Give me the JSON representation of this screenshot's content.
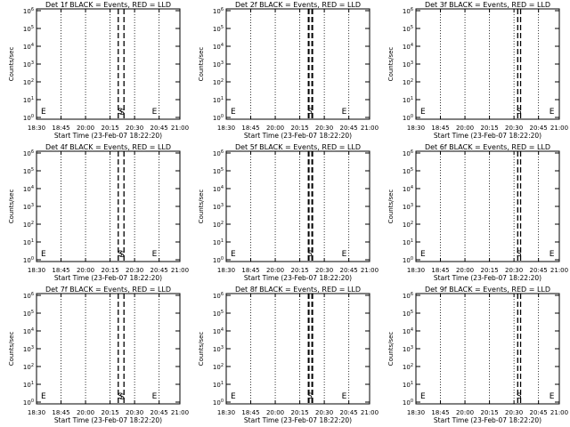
{
  "chart_data": [
    {
      "type": "line",
      "title": "Det 1f BLACK = Events, RED = LLD",
      "xlabel": "Start Time (23-Feb-07 18:22:20)",
      "ylabel": "Counts/sec",
      "xticks": [
        "18:30",
        "18:45",
        "20:00",
        "20:15",
        "20:30",
        "20:45",
        "21:00"
      ],
      "yticks": [
        "10^6",
        "10^5",
        "10^4",
        "10^3",
        "10^2",
        "10^1",
        "10^0"
      ],
      "ylim": [
        1,
        1000000
      ],
      "yscale": "log",
      "annotations": [
        "E",
        "S",
        "S",
        "E"
      ],
      "series": [
        {
          "color": "#000000",
          "style": "dashed",
          "values": []
        }
      ]
    },
    {
      "type": "line",
      "title": "Det 2f BLACK = Events, RED = LLD",
      "xlabel": "Start Time (23-Feb-07 18:22:20)",
      "ylabel": "Counts/sec",
      "xticks": [
        "18:30",
        "18:45",
        "20:00",
        "20:15",
        "20:30",
        "20:45",
        "21:00"
      ],
      "yticks": [
        "10^6",
        "10^5",
        "10^4",
        "10^3",
        "10^2",
        "10^1",
        "10^0"
      ],
      "ylim": [
        1,
        1000000
      ],
      "yscale": "log",
      "annotations": [
        "E",
        "S",
        "E"
      ],
      "series": [
        {
          "color": "#000000",
          "style": "dashed",
          "values": []
        }
      ]
    },
    {
      "type": "line",
      "title": "Det 3f BLACK = Events, RED = LLD",
      "xlabel": "Start Time (23-Feb-07 18:22:20)",
      "ylabel": "Counts/sec",
      "xticks": [
        "18:30",
        "18:45",
        "20:00",
        "20:15",
        "20:30",
        "20:45",
        "21:00"
      ],
      "yticks": [
        "10^6",
        "10^5",
        "10^4",
        "10^3",
        "10^2",
        "10^1",
        "10^0"
      ],
      "ylim": [
        1,
        1000000
      ],
      "yscale": "log",
      "annotations": [
        "E",
        "S",
        "E"
      ],
      "series": [
        {
          "color": "#000000",
          "style": "dashed",
          "values": []
        }
      ]
    },
    {
      "type": "line",
      "title": "Det 4f BLACK = Events, RED = LLD",
      "xlabel": "Start Time (23-Feb-07 18:22:20)",
      "ylabel": "Counts/sec",
      "xticks": [
        "18:30",
        "18:45",
        "20:00",
        "20:15",
        "20:30",
        "20:45",
        "21:00"
      ],
      "yticks": [
        "10^6",
        "10^5",
        "10^4",
        "10^3",
        "10^2",
        "10^1",
        "10^0"
      ],
      "ylim": [
        1,
        1000000
      ],
      "yscale": "log",
      "annotations": [
        "E",
        "S",
        "S",
        "E"
      ],
      "series": [
        {
          "color": "#000000",
          "style": "dashed",
          "values": []
        }
      ]
    },
    {
      "type": "line",
      "title": "Det 5f BLACK = Events, RED = LLD",
      "xlabel": "Start Time (23-Feb-07 18:22:20)",
      "ylabel": "Counts/sec",
      "xticks": [
        "18:30",
        "18:45",
        "20:00",
        "20:15",
        "20:30",
        "20:45",
        "21:00"
      ],
      "yticks": [
        "10^6",
        "10^5",
        "10^4",
        "10^3",
        "10^2",
        "10^1",
        "10^0"
      ],
      "ylim": [
        1,
        1000000
      ],
      "yscale": "log",
      "annotations": [
        "E",
        "S",
        "E"
      ],
      "series": [
        {
          "color": "#000000",
          "style": "dashed",
          "values": []
        }
      ]
    },
    {
      "type": "line",
      "title": "Det 6f BLACK = Events, RED = LLD",
      "xlabel": "Start Time (23-Feb-07 18:22:20)",
      "ylabel": "Counts/sec",
      "xticks": [
        "18:30",
        "18:45",
        "20:00",
        "20:15",
        "20:30",
        "20:45",
        "21:00"
      ],
      "yticks": [
        "10^6",
        "10^5",
        "10^4",
        "10^3",
        "10^2",
        "10^1",
        "10^0"
      ],
      "ylim": [
        1,
        1000000
      ],
      "yscale": "log",
      "annotations": [
        "E",
        "S",
        "E"
      ],
      "series": [
        {
          "color": "#000000",
          "style": "dashed",
          "values": []
        }
      ]
    },
    {
      "type": "line",
      "title": "Det 7f BLACK = Events, RED = LLD",
      "xlabel": "Start Time (23-Feb-07 18:22:20)",
      "ylabel": "Counts/sec",
      "xticks": [
        "18:30",
        "18:45",
        "20:00",
        "20:15",
        "20:30",
        "20:45",
        "21:00"
      ],
      "yticks": [
        "10^6",
        "10^5",
        "10^4",
        "10^3",
        "10^2",
        "10^1",
        "10^0"
      ],
      "ylim": [
        1,
        1000000
      ],
      "yscale": "log",
      "annotations": [
        "E",
        "S",
        "S",
        "E"
      ],
      "series": [
        {
          "color": "#000000",
          "style": "dashed",
          "values": []
        }
      ]
    },
    {
      "type": "line",
      "title": "Det 8f BLACK = Events, RED = LLD",
      "xlabel": "Start Time (23-Feb-07 18:22:20)",
      "ylabel": "Counts/sec",
      "xticks": [
        "18:30",
        "18:45",
        "20:00",
        "20:15",
        "20:30",
        "20:45",
        "21:00"
      ],
      "yticks": [
        "10^6",
        "10^5",
        "10^4",
        "10^3",
        "10^2",
        "10^1",
        "10^0"
      ],
      "ylim": [
        1,
        1000000
      ],
      "yscale": "log",
      "annotations": [
        "E",
        "S",
        "E"
      ],
      "series": [
        {
          "color": "#000000",
          "style": "dashed",
          "values": []
        }
      ]
    },
    {
      "type": "line",
      "title": "Det 9f BLACK = Events, RED = LLD",
      "xlabel": "Start Time (23-Feb-07 18:22:20)",
      "ylabel": "Counts/sec",
      "xticks": [
        "18:30",
        "18:45",
        "20:00",
        "20:15",
        "20:30",
        "20:45",
        "21:00"
      ],
      "yticks": [
        "10^6",
        "10^5",
        "10^4",
        "10^3",
        "10^2",
        "10^1",
        "10^0"
      ],
      "ylim": [
        1,
        1000000
      ],
      "yscale": "log",
      "annotations": [
        "E",
        "S",
        "E"
      ],
      "series": [
        {
          "color": "#000000",
          "style": "dashed",
          "values": []
        }
      ]
    }
  ]
}
